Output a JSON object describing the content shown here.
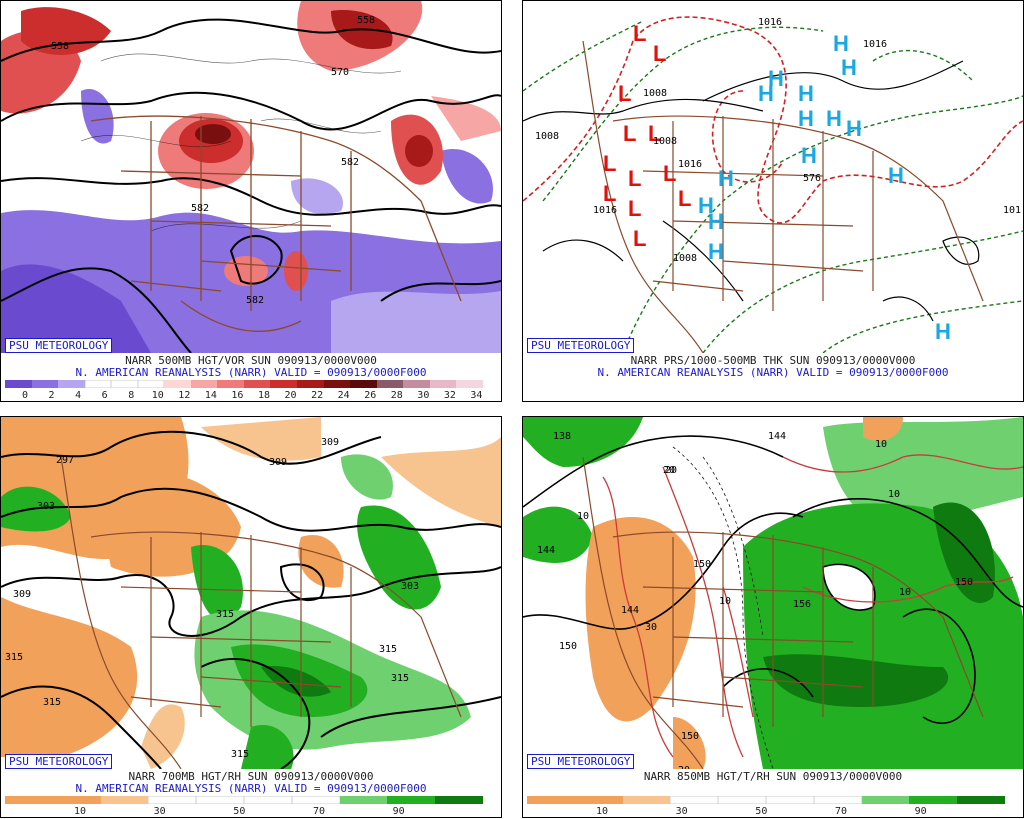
{
  "panels": [
    {
      "badge": "PSU METEOROLOGY",
      "caption1": "NARR 500MB HGT/VOR SUN 090913/0000V000",
      "caption2": "N. AMERICAN REANALYSIS (NARR) VALID = 090913/0000F000",
      "colorbar": [
        "#6a4bd0",
        "#8a70e0",
        "#b6a6ef",
        "#ffffff",
        "#ffffff",
        "#ffffff",
        "#ffd6d6",
        "#f7a6a6",
        "#ef7a7a",
        "#e05050",
        "#cc2d2d",
        "#a81a1a",
        "#7a0f0f",
        "#5a0a0a",
        "#8a5a6a",
        "#c48ca0",
        "#e8b8c8",
        "#f4d6e0"
      ],
      "ticks": [
        "0",
        "2",
        "4",
        "6",
        "8",
        "10",
        "12",
        "14",
        "16",
        "18",
        "20",
        "22",
        "24",
        "26",
        "28",
        "30",
        "32",
        "34"
      ],
      "contour_labels": [
        "558",
        "558",
        "570",
        "582",
        "582",
        "582"
      ]
    },
    {
      "badge": "PSU METEOROLOGY",
      "caption1": "NARR PRS/1000-500MB THK SUN 090913/0000V000",
      "caption2": "N. AMERICAN REANALYSIS (NARR) VALID = 090913/0000F000",
      "contour_labels": [
        "1008",
        "1016",
        "1008",
        "1008",
        "1016",
        "1016",
        "576",
        "1008",
        "1016",
        "101"
      ],
      "low_symbol": "L",
      "high_symbol": "H"
    },
    {
      "badge": "PSU METEOROLOGY",
      "caption1": "NARR 700MB HGT/RH SUN 090913/0000V000",
      "caption2": "N. AMERICAN REANALYSIS (NARR) VALID = 090913/0000F000",
      "colorbar": [
        "#f2a15a",
        "#f2a15a",
        "#f7c48f",
        "#ffffff",
        "#ffffff",
        "#ffffff",
        "#ffffff",
        "#6fd06f",
        "#22b022",
        "#0f7a0f"
      ],
      "ticks": [
        "10",
        "30",
        "50",
        "70",
        "90"
      ],
      "contour_labels": [
        "297",
        "309",
        "303",
        "309",
        "309",
        "315",
        "303",
        "315",
        "315",
        "315",
        "315",
        "315"
      ]
    },
    {
      "badge": "PSU METEOROLOGY",
      "caption1": "NARR 850MB HGT/T/RH SUN 090913/0000V000",
      "caption2": "",
      "colorbar": [
        "#f2a15a",
        "#f2a15a",
        "#f7c48f",
        "#ffffff",
        "#ffffff",
        "#ffffff",
        "#ffffff",
        "#6fd06f",
        "#22b022",
        "#0f7a0f"
      ],
      "ticks": [
        "10",
        "30",
        "50",
        "70",
        "90"
      ],
      "contour_labels": [
        "138",
        "144",
        "144",
        "150",
        "144",
        "30",
        "10",
        "20",
        "10",
        "150",
        "150",
        "156",
        "10",
        "10",
        "150",
        "20",
        "20",
        "10"
      ]
    }
  ],
  "colors": {
    "border_brown": "#8b4a2b",
    "vort_purple": "#7a5fd8",
    "vort_red": "#d23a3a",
    "low_red": "#e0100c",
    "high_cyan": "#19a8e0",
    "moist_green": "#22b022",
    "dry_orange": "#f2a15a",
    "label_blue": "#1a1acc"
  }
}
